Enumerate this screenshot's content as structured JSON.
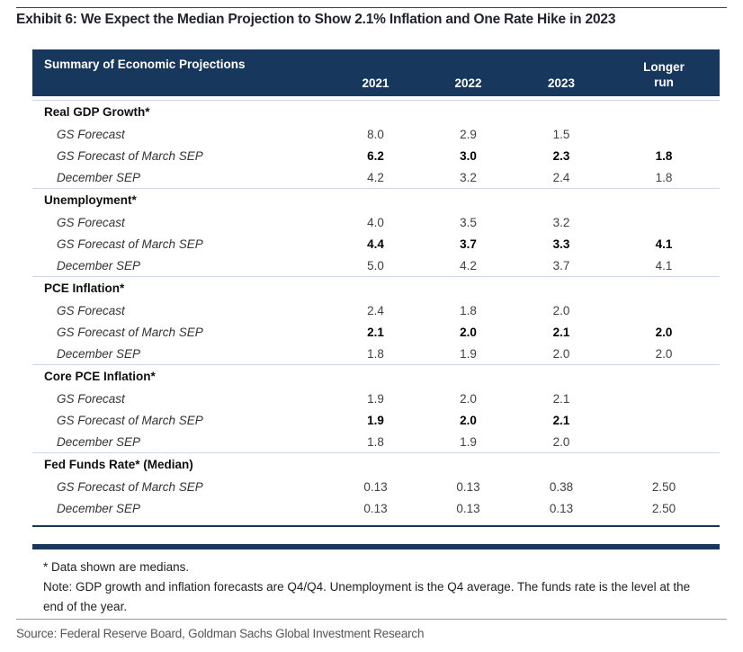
{
  "exhibit": {
    "title": "Exhibit 6: We Expect the Median Projection to Show 2.1% Inflation and One Rate Hike in 2023"
  },
  "table": {
    "title": "Summary of Economic Projections",
    "columns": [
      "2021",
      "2022",
      "2023",
      "Longer\nrun"
    ],
    "sections": [
      {
        "name": "Real GDP Growth*",
        "rows": [
          {
            "label": "GS Forecast",
            "bold": false,
            "values": [
              "8.0",
              "2.9",
              "1.5",
              ""
            ]
          },
          {
            "label": "GS Forecast of March SEP",
            "bold": true,
            "values": [
              "6.2",
              "3.0",
              "2.3",
              "1.8"
            ]
          },
          {
            "label": "December SEP",
            "bold": false,
            "values": [
              "4.2",
              "3.2",
              "2.4",
              "1.8"
            ]
          }
        ]
      },
      {
        "name": "Unemployment*",
        "rows": [
          {
            "label": "GS Forecast",
            "bold": false,
            "values": [
              "4.0",
              "3.5",
              "3.2",
              ""
            ]
          },
          {
            "label": "GS Forecast of March SEP",
            "bold": true,
            "values": [
              "4.4",
              "3.7",
              "3.3",
              "4.1"
            ]
          },
          {
            "label": "December SEP",
            "bold": false,
            "values": [
              "5.0",
              "4.2",
              "3.7",
              "4.1"
            ]
          }
        ]
      },
      {
        "name": "PCE Inflation*",
        "rows": [
          {
            "label": "GS Forecast",
            "bold": false,
            "values": [
              "2.4",
              "1.8",
              "2.0",
              ""
            ]
          },
          {
            "label": "GS Forecast of March SEP",
            "bold": true,
            "values": [
              "2.1",
              "2.0",
              "2.1",
              "2.0"
            ]
          },
          {
            "label": "December SEP",
            "bold": false,
            "values": [
              "1.8",
              "1.9",
              "2.0",
              "2.0"
            ]
          }
        ]
      },
      {
        "name": "Core PCE Inflation*",
        "rows": [
          {
            "label": "GS Forecast",
            "bold": false,
            "values": [
              "1.9",
              "2.0",
              "2.1",
              ""
            ]
          },
          {
            "label": "GS Forecast of March SEP",
            "bold": true,
            "values": [
              "1.9",
              "2.0",
              "2.1",
              ""
            ]
          },
          {
            "label": "December SEP",
            "bold": false,
            "values": [
              "1.8",
              "1.9",
              "2.0",
              ""
            ]
          }
        ]
      },
      {
        "name": "Fed Funds Rate* (Median)",
        "rows": [
          {
            "label": "GS Forecast of March SEP",
            "bold": false,
            "values": [
              "0.13",
              "0.13",
              "0.38",
              "2.50"
            ]
          },
          {
            "label": "December SEP",
            "bold": false,
            "values": [
              "0.13",
              "0.13",
              "0.13",
              "2.50"
            ]
          }
        ]
      }
    ]
  },
  "footnotes": {
    "medians": "* Data shown are medians.",
    "note": "Note: GDP growth and inflation forecasts are Q4/Q4.  Unemployment is the Q4 average.  The funds rate is the level at the end of the year."
  },
  "source": "Source: Federal Reserve Board, Goldman Sachs Global Investment Research",
  "colors": {
    "header_navy": "#17375D",
    "separator_light_blue": "#c9d8ea",
    "title_text": "#1f232b",
    "source_gray": "#565656"
  }
}
